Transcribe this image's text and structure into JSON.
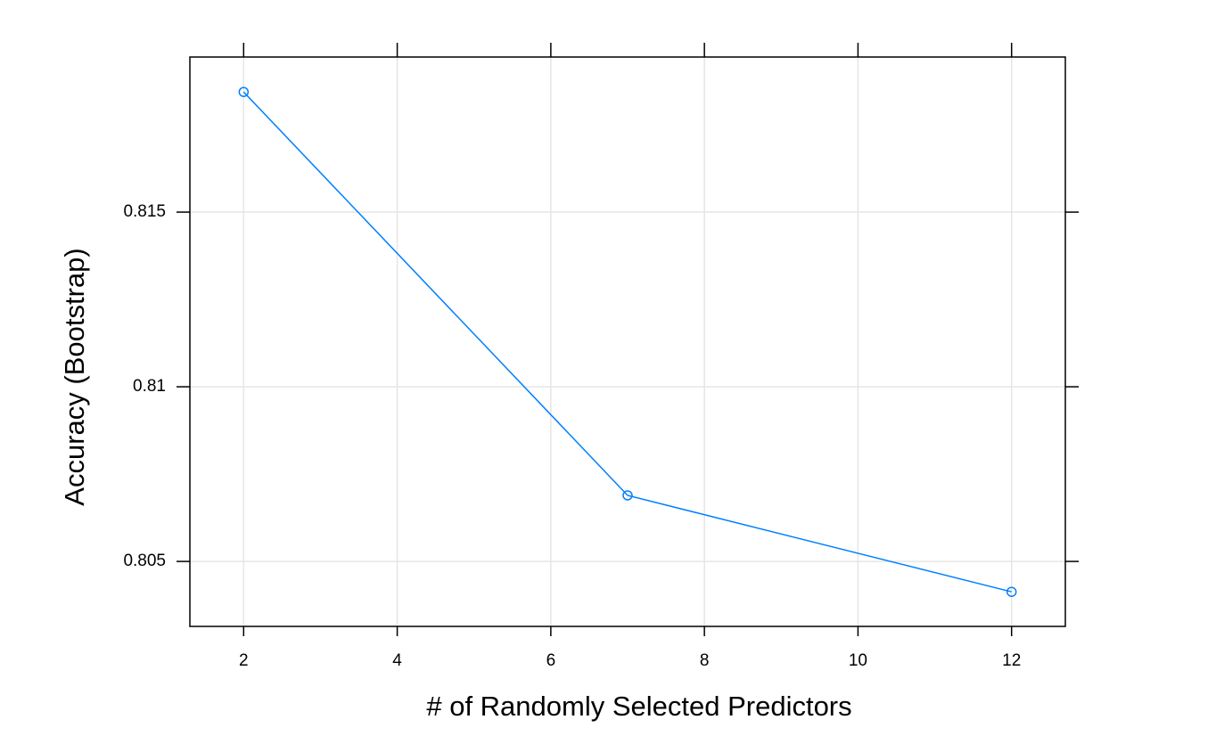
{
  "chart_data": {
    "type": "line",
    "xlabel": "# of Randomly Selected Predictors",
    "ylabel": "Accuracy (Bootstrap)",
    "x": [
      2,
      7,
      12
    ],
    "series": [
      {
        "color": "#0080ff",
        "values": [
          0.81844,
          0.80689,
          0.80413
        ]
      }
    ],
    "xlim": [
      1.3,
      12.7
    ],
    "xticks": [
      2,
      4,
      6,
      8,
      10,
      12
    ],
    "ylim": [
      0.80314,
      0.81944
    ],
    "yticks": [
      0.805,
      0.81,
      0.815
    ],
    "grid": true
  }
}
